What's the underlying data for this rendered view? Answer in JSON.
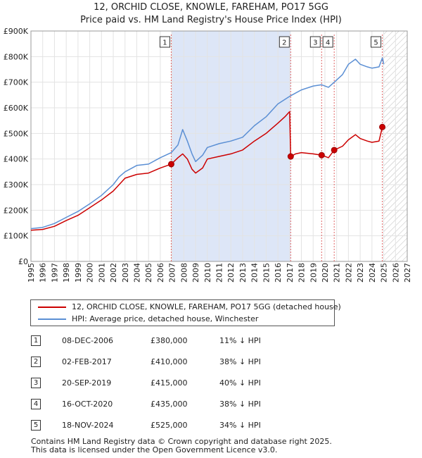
{
  "title_line1": "12, ORCHID CLOSE, KNOWLE, FAREHAM, PO17 5GG",
  "title_line2": "Price paid vs. HM Land Registry's House Price Index (HPI)",
  "colors": {
    "property": "#cc0000",
    "hpi": "#5b8fd4",
    "shade": "#dde6f7",
    "marker_line": "#e06666",
    "grid": "#e3e3e3"
  },
  "chart_data": {
    "type": "line",
    "title": "Price paid vs. HM Land Registry's House Price Index (HPI)",
    "xlim": [
      1995,
      2027
    ],
    "ylim": [
      0,
      900000
    ],
    "x_ticks": [
      "1995",
      "1996",
      "1997",
      "1998",
      "1999",
      "2000",
      "2001",
      "2002",
      "2003",
      "2004",
      "2005",
      "2006",
      "2007",
      "2008",
      "2009",
      "2010",
      "2011",
      "2012",
      "2013",
      "2014",
      "2015",
      "2016",
      "2017",
      "2018",
      "2019",
      "2020",
      "2021",
      "2022",
      "2023",
      "2024",
      "2025",
      "2026",
      "2027"
    ],
    "y_ticks": [
      {
        "value": 0,
        "label": "£0"
      },
      {
        "value": 100000,
        "label": "£100K"
      },
      {
        "value": 200000,
        "label": "£200K"
      },
      {
        "value": 300000,
        "label": "£300K"
      },
      {
        "value": 400000,
        "label": "£400K"
      },
      {
        "value": 500000,
        "label": "£500K"
      },
      {
        "value": 600000,
        "label": "£600K"
      },
      {
        "value": 700000,
        "label": "£700K"
      },
      {
        "value": 800000,
        "label": "£800K"
      },
      {
        "value": 900000,
        "label": "£900K"
      }
    ],
    "grid": true,
    "shaded_period": [
      2006.93,
      2017.09
    ],
    "hatched_from": 2025.0,
    "series": [
      {
        "name": "12, ORCHID CLOSE, KNOWLE, FAREHAM, PO17 5GG (detached house)",
        "color": "#cc0000",
        "points": [
          [
            1995.0,
            122000
          ],
          [
            1996.0,
            125000
          ],
          [
            1997.0,
            137000
          ],
          [
            1998.0,
            160000
          ],
          [
            1999.0,
            180000
          ],
          [
            2000.0,
            210000
          ],
          [
            2001.0,
            240000
          ],
          [
            2002.0,
            275000
          ],
          [
            2002.5,
            300000
          ],
          [
            2003.0,
            325000
          ],
          [
            2004.0,
            340000
          ],
          [
            2005.0,
            345000
          ],
          [
            2006.0,
            365000
          ],
          [
            2006.93,
            380000
          ],
          [
            2007.5,
            405000
          ],
          [
            2007.9,
            420000
          ],
          [
            2008.3,
            400000
          ],
          [
            2008.7,
            360000
          ],
          [
            2009.0,
            345000
          ],
          [
            2009.6,
            365000
          ],
          [
            2010.0,
            400000
          ],
          [
            2011.0,
            410000
          ],
          [
            2012.0,
            420000
          ],
          [
            2013.0,
            435000
          ],
          [
            2014.0,
            470000
          ],
          [
            2015.0,
            500000
          ],
          [
            2016.0,
            540000
          ],
          [
            2016.6,
            565000
          ],
          [
            2017.0,
            585000
          ],
          [
            2017.09,
            410000
          ],
          [
            2017.5,
            420000
          ],
          [
            2018.0,
            425000
          ],
          [
            2019.0,
            420000
          ],
          [
            2019.72,
            415000
          ],
          [
            2020.3,
            405000
          ],
          [
            2020.79,
            435000
          ],
          [
            2021.5,
            450000
          ],
          [
            2022.0,
            475000
          ],
          [
            2022.6,
            495000
          ],
          [
            2023.0,
            480000
          ],
          [
            2023.6,
            470000
          ],
          [
            2024.0,
            465000
          ],
          [
            2024.6,
            470000
          ],
          [
            2024.88,
            525000
          ],
          [
            2025.0,
            520000
          ]
        ]
      },
      {
        "name": "HPI: Average price, detached house, Winchester",
        "color": "#5b8fd4",
        "points": [
          [
            1995.0,
            128000
          ],
          [
            1996.0,
            133000
          ],
          [
            1997.0,
            148000
          ],
          [
            1998.0,
            172000
          ],
          [
            1999.0,
            195000
          ],
          [
            2000.0,
            225000
          ],
          [
            2001.0,
            258000
          ],
          [
            2002.0,
            300000
          ],
          [
            2002.5,
            330000
          ],
          [
            2003.0,
            350000
          ],
          [
            2004.0,
            375000
          ],
          [
            2005.0,
            380000
          ],
          [
            2006.0,
            405000
          ],
          [
            2006.93,
            425000
          ],
          [
            2007.5,
            455000
          ],
          [
            2007.9,
            515000
          ],
          [
            2008.3,
            470000
          ],
          [
            2008.7,
            420000
          ],
          [
            2009.0,
            390000
          ],
          [
            2009.6,
            415000
          ],
          [
            2010.0,
            445000
          ],
          [
            2011.0,
            460000
          ],
          [
            2012.0,
            470000
          ],
          [
            2013.0,
            485000
          ],
          [
            2014.0,
            530000
          ],
          [
            2015.0,
            565000
          ],
          [
            2016.0,
            615000
          ],
          [
            2017.0,
            645000
          ],
          [
            2018.0,
            670000
          ],
          [
            2019.0,
            685000
          ],
          [
            2019.72,
            690000
          ],
          [
            2020.3,
            680000
          ],
          [
            2020.79,
            700000
          ],
          [
            2021.5,
            730000
          ],
          [
            2022.0,
            770000
          ],
          [
            2022.6,
            790000
          ],
          [
            2023.0,
            770000
          ],
          [
            2023.6,
            760000
          ],
          [
            2024.0,
            755000
          ],
          [
            2024.6,
            760000
          ],
          [
            2024.88,
            795000
          ],
          [
            2025.0,
            770000
          ]
        ]
      }
    ],
    "markers": [
      {
        "label": "1",
        "x": 2006.93,
        "y": 380000
      },
      {
        "label": "2",
        "x": 2017.09,
        "y": 410000
      },
      {
        "label": "3",
        "x": 2019.72,
        "y": 415000
      },
      {
        "label": "4",
        "x": 2020.79,
        "y": 435000
      },
      {
        "label": "5",
        "x": 2024.88,
        "y": 525000
      }
    ]
  },
  "legend": {
    "property_label": "12, ORCHID CLOSE, KNOWLE, FAREHAM, PO17 5GG (detached house)",
    "hpi_label": "HPI: Average price, detached house, Winchester"
  },
  "sales": [
    {
      "num": "1",
      "date": "08-DEC-2006",
      "price": "£380,000",
      "hpi": "11% ↓ HPI"
    },
    {
      "num": "2",
      "date": "02-FEB-2017",
      "price": "£410,000",
      "hpi": "38% ↓ HPI"
    },
    {
      "num": "3",
      "date": "20-SEP-2019",
      "price": "£415,000",
      "hpi": "40% ↓ HPI"
    },
    {
      "num": "4",
      "date": "16-OCT-2020",
      "price": "£435,000",
      "hpi": "38% ↓ HPI"
    },
    {
      "num": "5",
      "date": "18-NOV-2024",
      "price": "£525,000",
      "hpi": "34% ↓ HPI"
    }
  ],
  "footer_line1": "Contains HM Land Registry data © Crown copyright and database right 2025.",
  "footer_line2": "This data is licensed under the Open Government Licence v3.0."
}
